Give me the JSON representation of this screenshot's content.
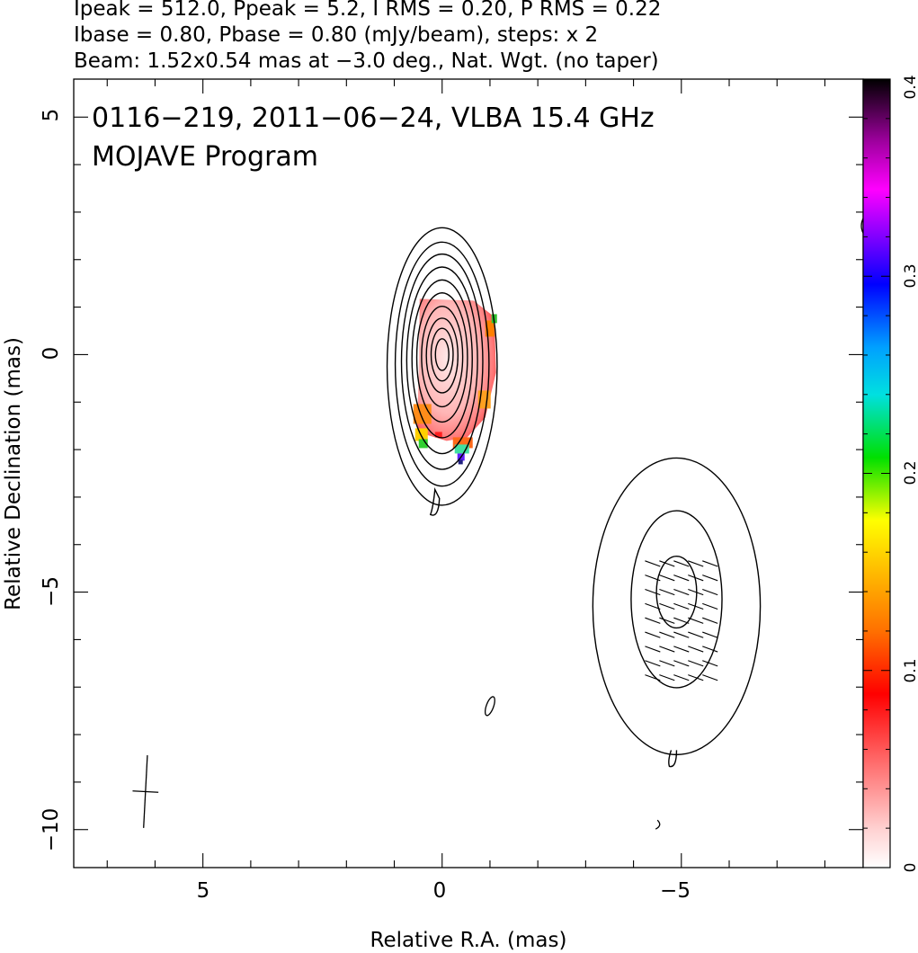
{
  "header": {
    "line1": "Ipeak = 512.0, Ppeak = 5.2, I RMS = 0.20, P RMS = 0.22",
    "line2": "Ibase = 0.80, Pbase = 0.80 (mJy/beam), steps: x 2",
    "line3": "Beam: 1.52x0.54 mas at −3.0 deg., Nat. Wgt. (no taper)"
  },
  "chart_data": {
    "type": "contour",
    "title": "0116−219, 2011−06−24, VLBA 15.4 GHz",
    "subtitle": "MOJAVE Program",
    "xlabel": "Relative R.A. (mas)",
    "ylabel": "Relative Declination (mas)",
    "xlim": [
      7.7,
      -8.8
    ],
    "ylim": [
      -10.8,
      5.8
    ],
    "x_ticks": [
      5,
      0,
      -5
    ],
    "y_ticks": [
      5,
      0,
      -5,
      -10
    ],
    "x_tick_labels": [
      "5",
      "0",
      "−5"
    ],
    "y_tick_labels": [
      "5",
      "0",
      "−5",
      "−10"
    ],
    "colorbar": {
      "range": [
        0,
        0.4
      ],
      "ticks": [
        0,
        0.1,
        0.2,
        0.3,
        0.4
      ],
      "tick_labels": [
        "0",
        "0.1",
        "0.2",
        "0.3",
        "0.4"
      ]
    },
    "contour_base_mJy": 0.8,
    "contour_step_factor": 2,
    "core": {
      "ra": 0.0,
      "dec": 0.0,
      "peak_mJy": 512.0,
      "contours": [
        {
          "a": 1.15,
          "b": 2.9,
          "dy": -0.25
        },
        {
          "a": 0.98,
          "b": 2.55,
          "dy": -0.2
        },
        {
          "a": 0.85,
          "b": 2.25,
          "dy": -0.15
        },
        {
          "a": 0.74,
          "b": 1.95,
          "dy": -0.12
        },
        {
          "a": 0.63,
          "b": 1.65,
          "dy": -0.09
        },
        {
          "a": 0.53,
          "b": 1.35,
          "dy": -0.06
        },
        {
          "a": 0.43,
          "b": 1.05,
          "dy": -0.04
        },
        {
          "a": 0.33,
          "b": 0.78,
          "dy": -0.02
        },
        {
          "a": 0.23,
          "b": 0.55,
          "dy": 0.0
        },
        {
          "a": 0.14,
          "b": 0.33,
          "dy": 0.0
        }
      ]
    },
    "jet_component": {
      "ra": -4.9,
      "dec": -5.3,
      "contours": [
        {
          "a": 1.75,
          "b": 3.1,
          "dy": 0.0
        },
        {
          "a": 0.95,
          "b": 1.85,
          "dy": 0.15
        },
        {
          "a": 0.42,
          "b": 0.75,
          "dy": 0.3
        }
      ]
    },
    "polarization_vectors_region": {
      "ra_range": [
        -4.4,
        -5.6
      ],
      "dec_range": [
        -4.4,
        -7.0
      ],
      "angle_deg": 20
    },
    "beam": {
      "major_mas": 1.52,
      "minor_mas": 0.54,
      "pa_deg": -3.0,
      "ra": 6.2,
      "dec": -9.2
    }
  }
}
